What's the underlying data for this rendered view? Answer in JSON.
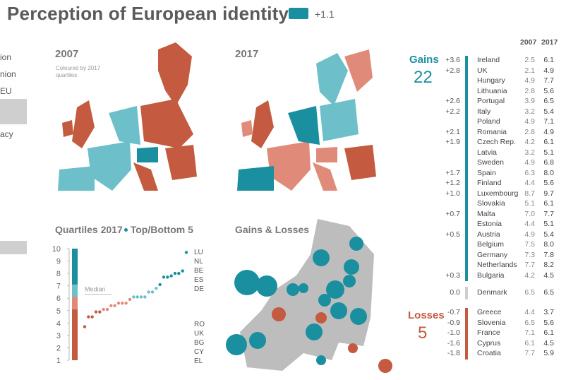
{
  "page": {
    "title": "Perception of European identity",
    "legend_value": "+1.1",
    "nav_items": [
      "ion",
      "nion",
      "EU",
      "acy"
    ]
  },
  "maps": {
    "m2007": {
      "title": "2007",
      "note1": "Coloured by 2017",
      "note2": "quartiles"
    },
    "m2017": {
      "title": "2017"
    },
    "gains_losses": {
      "title": "Gains & Losses"
    }
  },
  "quartiles": {
    "title_a": "Quartiles 2017",
    "title_b": "Top/Bottom 5",
    "median_label": "Median"
  },
  "colors": {
    "top": "#1a8fa0",
    "q3": "#6dbfc9",
    "q2": "#e08b7a",
    "bottom": "#c45a3f",
    "grey": "#bdbdbd"
  },
  "table": {
    "col_2007": "2007",
    "col_2017": "2017",
    "gains_label": "Gains",
    "gains_count": "22",
    "losses_label": "Losses",
    "losses_count": "5",
    "gains": [
      {
        "change": "+3.6",
        "country": "Ireland",
        "v2007": "2.5",
        "v2017": "6.1"
      },
      {
        "change": "+2.8",
        "country": "UK",
        "v2007": "2.1",
        "v2017": "4.9"
      },
      {
        "change": "",
        "country": "Hungary",
        "v2007": "4.9",
        "v2017": "7.7"
      },
      {
        "change": "",
        "country": "Lithuania",
        "v2007": "2.8",
        "v2017": "5.6"
      },
      {
        "change": "+2.6",
        "country": "Portugal",
        "v2007": "3.9",
        "v2017": "6.5"
      },
      {
        "change": "+2.2",
        "country": "Italy",
        "v2007": "3.2",
        "v2017": "5.4"
      },
      {
        "change": "",
        "country": "Poland",
        "v2007": "4.9",
        "v2017": "7.1"
      },
      {
        "change": "+2.1",
        "country": "Romania",
        "v2007": "2.8",
        "v2017": "4.9"
      },
      {
        "change": "+1.9",
        "country": "Czech Rep.",
        "v2007": "4.2",
        "v2017": "6.1"
      },
      {
        "change": "",
        "country": "Latvia",
        "v2007": "3.2",
        "v2017": "5.1"
      },
      {
        "change": "",
        "country": "Sweden",
        "v2007": "4.9",
        "v2017": "6.8"
      },
      {
        "change": "+1.7",
        "country": "Spain",
        "v2007": "6.3",
        "v2017": "8.0"
      },
      {
        "change": "+1.2",
        "country": "Finland",
        "v2007": "4.4",
        "v2017": "5.6"
      },
      {
        "change": "+1.0",
        "country": "Luxembourg",
        "v2007": "8.7",
        "v2017": "9.7"
      },
      {
        "change": "",
        "country": "Slovakia",
        "v2007": "5.1",
        "v2017": "6.1"
      },
      {
        "change": "+0.7",
        "country": "Malta",
        "v2007": "7.0",
        "v2017": "7.7"
      },
      {
        "change": "",
        "country": "Estonia",
        "v2007": "4.4",
        "v2017": "5.1"
      },
      {
        "change": "+0.5",
        "country": "Austria",
        "v2007": "4.9",
        "v2017": "5.4"
      },
      {
        "change": "",
        "country": "Belgium",
        "v2007": "7.5",
        "v2017": "8.0"
      },
      {
        "change": "",
        "country": "Germany",
        "v2007": "7.3",
        "v2017": "7.8"
      },
      {
        "change": "",
        "country": "Netherlands",
        "v2007": "7.7",
        "v2017": "8.2"
      },
      {
        "change": "+0.3",
        "country": "Bulgaria",
        "v2007": "4.2",
        "v2017": "4.5"
      }
    ],
    "neutral": {
      "change": "0.0",
      "country": "Denmark",
      "v2007": "6.5",
      "v2017": "6.5"
    },
    "losses": [
      {
        "change": "-0.7",
        "country": "Greece",
        "v2007": "4.4",
        "v2017": "3.7"
      },
      {
        "change": "-0.9",
        "country": "Slovenia",
        "v2007": "6.5",
        "v2017": "5.6"
      },
      {
        "change": "-1.0",
        "country": "France",
        "v2007": "7.1",
        "v2017": "6.1"
      },
      {
        "change": "-1.6",
        "country": "Cyprus",
        "v2007": "6.1",
        "v2017": "4.5"
      },
      {
        "change": "-1.8",
        "country": "Croatia",
        "v2007": "7.7",
        "v2017": "5.9"
      }
    ]
  },
  "chart_data": {
    "type": "scatter",
    "title": "Quartiles 2017 Top/Bottom 5",
    "xlabel": "",
    "ylabel": "",
    "ylim": [
      1,
      10
    ],
    "yticks": [
      "1",
      "2",
      "3",
      "4",
      "5",
      "6",
      "7",
      "8",
      "9",
      "10"
    ],
    "grid": false,
    "top5_labels": [
      "LU",
      "NL",
      "BE",
      "ES",
      "DE"
    ],
    "bottom5_labels": [
      "RO",
      "UK",
      "BG",
      "CY",
      "EL"
    ],
    "sorted_values_2017": [
      3.7,
      4.5,
      4.5,
      4.9,
      4.9,
      5.1,
      5.1,
      5.4,
      5.4,
      5.6,
      5.6,
      5.6,
      5.9,
      6.1,
      6.1,
      6.1,
      6.1,
      6.5,
      6.5,
      6.8,
      7.1,
      7.7,
      7.7,
      7.8,
      8.0,
      8.0,
      8.2,
      9.7
    ]
  }
}
